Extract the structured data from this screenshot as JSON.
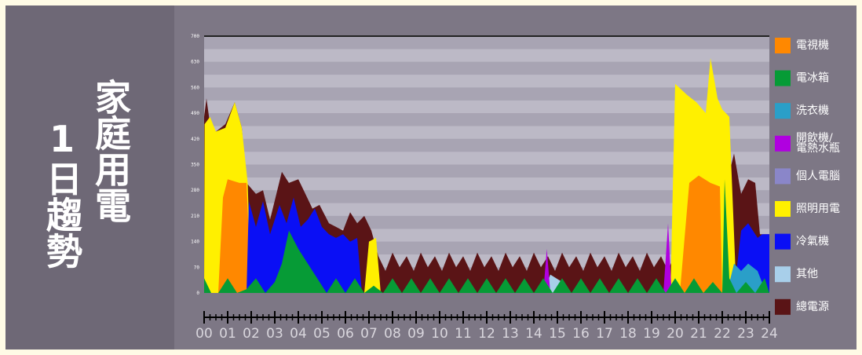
{
  "title_line1": "家庭用電",
  "title_line2": "1日趨勢",
  "chart_data": {
    "type": "area",
    "xlabel": "",
    "ylabel": "",
    "x_ticks": [
      "00",
      "01",
      "02",
      "03",
      "04",
      "05",
      "06",
      "07",
      "08",
      "09",
      "10",
      "11",
      "12",
      "13",
      "14",
      "15",
      "16",
      "17",
      "18",
      "19",
      "20",
      "21",
      "22",
      "23",
      "24"
    ],
    "y_ticks": [
      "0",
      "70",
      "140",
      "210",
      "280",
      "350",
      "420",
      "490",
      "560",
      "630",
      "700"
    ],
    "ylim": [
      0,
      700
    ],
    "xlim": [
      0,
      24
    ],
    "grid": true,
    "legend_position": "right",
    "series": [
      {
        "name": "總電源",
        "color": "#5a1416",
        "points": [
          [
            0,
            480
          ],
          [
            0.1,
            530
          ],
          [
            0.25,
            460
          ],
          [
            0.5,
            440
          ],
          [
            0.9,
            460
          ],
          [
            1.3,
            520
          ],
          [
            1.6,
            450
          ],
          [
            1.8,
            300
          ],
          [
            2.2,
            270
          ],
          [
            2.5,
            280
          ],
          [
            2.8,
            200
          ],
          [
            3.3,
            330
          ],
          [
            3.6,
            300
          ],
          [
            4,
            310
          ],
          [
            4.3,
            270
          ],
          [
            4.6,
            230
          ],
          [
            4.9,
            240
          ],
          [
            5.3,
            190
          ],
          [
            5.6,
            180
          ],
          [
            5.9,
            170
          ],
          [
            6.2,
            220
          ],
          [
            6.5,
            190
          ],
          [
            6.8,
            210
          ],
          [
            7.1,
            170
          ],
          [
            7.4,
            100
          ],
          [
            7.7,
            60
          ],
          [
            8,
            110
          ],
          [
            8.3,
            70
          ],
          [
            8.6,
            100
          ],
          [
            8.9,
            60
          ],
          [
            9.2,
            110
          ],
          [
            9.5,
            70
          ],
          [
            9.8,
            100
          ],
          [
            10.1,
            60
          ],
          [
            10.4,
            110
          ],
          [
            10.7,
            70
          ],
          [
            11,
            100
          ],
          [
            11.3,
            60
          ],
          [
            11.6,
            110
          ],
          [
            11.9,
            70
          ],
          [
            12.2,
            100
          ],
          [
            12.5,
            60
          ],
          [
            12.8,
            110
          ],
          [
            13.1,
            70
          ],
          [
            13.4,
            100
          ],
          [
            13.7,
            60
          ],
          [
            14,
            110
          ],
          [
            14.3,
            70
          ],
          [
            14.6,
            100
          ],
          [
            14.9,
            60
          ],
          [
            15.2,
            110
          ],
          [
            15.5,
            70
          ],
          [
            15.8,
            100
          ],
          [
            16.1,
            60
          ],
          [
            16.4,
            110
          ],
          [
            16.7,
            70
          ],
          [
            17,
            100
          ],
          [
            17.3,
            60
          ],
          [
            17.6,
            110
          ],
          [
            17.9,
            70
          ],
          [
            18.2,
            100
          ],
          [
            18.5,
            60
          ],
          [
            18.8,
            110
          ],
          [
            19.1,
            70
          ],
          [
            19.4,
            100
          ],
          [
            19.7,
            60
          ],
          [
            20,
            110
          ],
          [
            20.3,
            300
          ],
          [
            20.6,
            380
          ],
          [
            21,
            320
          ],
          [
            21.4,
            300
          ],
          [
            21.8,
            310
          ],
          [
            22.2,
            300
          ],
          [
            22.5,
            380
          ],
          [
            22.8,
            270
          ],
          [
            23.1,
            310
          ],
          [
            23.4,
            300
          ],
          [
            23.6,
            160
          ],
          [
            24,
            160
          ]
        ]
      },
      {
        "name": "照明用電",
        "color": "#fff000",
        "points": [
          [
            0,
            0
          ],
          [
            0.02,
            460
          ],
          [
            0.25,
            480
          ],
          [
            0.5,
            440
          ],
          [
            0.9,
            450
          ],
          [
            1.3,
            520
          ],
          [
            1.6,
            450
          ],
          [
            1.85,
            300
          ],
          [
            2,
            0
          ],
          [
            6.8,
            0
          ],
          [
            7,
            140
          ],
          [
            7.3,
            150
          ],
          [
            7.5,
            0
          ],
          [
            19.8,
            0
          ],
          [
            20,
            570
          ],
          [
            20.5,
            540
          ],
          [
            20.9,
            520
          ],
          [
            21.3,
            490
          ],
          [
            21.5,
            640
          ],
          [
            21.8,
            530
          ],
          [
            22,
            500
          ],
          [
            22.3,
            480
          ],
          [
            22.6,
            0
          ],
          [
            24,
            0
          ]
        ]
      },
      {
        "name": "電視機",
        "color": "#ff8800",
        "points": [
          [
            0,
            0
          ],
          [
            0.6,
            0
          ],
          [
            0.8,
            260
          ],
          [
            1,
            310
          ],
          [
            1.5,
            300
          ],
          [
            1.8,
            300
          ],
          [
            2,
            0
          ],
          [
            19.9,
            0
          ],
          [
            20.2,
            0
          ],
          [
            20.6,
            300
          ],
          [
            21,
            320
          ],
          [
            21.5,
            300
          ],
          [
            21.9,
            290
          ],
          [
            22,
            0
          ],
          [
            24,
            0
          ]
        ]
      },
      {
        "name": "冷氣機",
        "color": "#0a0ff5",
        "points": [
          [
            0,
            0
          ],
          [
            1.8,
            0
          ],
          [
            1.9,
            250
          ],
          [
            2.2,
            180
          ],
          [
            2.5,
            250
          ],
          [
            2.8,
            160
          ],
          [
            3.2,
            240
          ],
          [
            3.5,
            190
          ],
          [
            3.8,
            260
          ],
          [
            4.1,
            180
          ],
          [
            4.4,
            200
          ],
          [
            4.7,
            230
          ],
          [
            5,
            180
          ],
          [
            5.3,
            160
          ],
          [
            5.6,
            150
          ],
          [
            5.9,
            160
          ],
          [
            6.2,
            140
          ],
          [
            6.5,
            150
          ],
          [
            6.7,
            0
          ],
          [
            22.5,
            0
          ],
          [
            22.8,
            170
          ],
          [
            23.1,
            190
          ],
          [
            23.5,
            150
          ],
          [
            23.7,
            160
          ],
          [
            24,
            160
          ]
        ]
      },
      {
        "name": "洗衣機",
        "color": "#2a9fc8",
        "points": [
          [
            0,
            0
          ],
          [
            22.2,
            0
          ],
          [
            22.5,
            80
          ],
          [
            22.8,
            60
          ],
          [
            23.1,
            80
          ],
          [
            23.5,
            60
          ],
          [
            23.8,
            10
          ],
          [
            24,
            0
          ]
        ]
      },
      {
        "name": "其他",
        "color": "#a8cfea",
        "points": [
          [
            0,
            0
          ],
          [
            14.4,
            0
          ],
          [
            14.7,
            50
          ],
          [
            15.2,
            30
          ],
          [
            15.5,
            0
          ],
          [
            24,
            0
          ]
        ]
      },
      {
        "name": "開飲機/電熱水瓶",
        "color": "#b000e0",
        "points": [
          [
            0,
            0
          ],
          [
            14.4,
            0
          ],
          [
            14.55,
            120
          ],
          [
            14.7,
            0
          ],
          [
            19.5,
            0
          ],
          [
            19.7,
            190
          ],
          [
            19.85,
            0
          ],
          [
            24,
            0
          ]
        ]
      },
      {
        "name": "電冰箱",
        "color": "#069b36",
        "points": [
          [
            0,
            40
          ],
          [
            0.3,
            0
          ],
          [
            0.6,
            0
          ],
          [
            1,
            40
          ],
          [
            1.4,
            0
          ],
          [
            1.8,
            10
          ],
          [
            2.2,
            40
          ],
          [
            2.6,
            0
          ],
          [
            3,
            30
          ],
          [
            3.3,
            80
          ],
          [
            3.6,
            170
          ],
          [
            4,
            120
          ],
          [
            4.4,
            80
          ],
          [
            4.8,
            40
          ],
          [
            5.2,
            0
          ],
          [
            5.6,
            40
          ],
          [
            6,
            0
          ],
          [
            6.4,
            40
          ],
          [
            6.8,
            0
          ],
          [
            7.2,
            20
          ],
          [
            7.6,
            0
          ],
          [
            8,
            40
          ],
          [
            8.4,
            0
          ],
          [
            8.8,
            40
          ],
          [
            9.2,
            0
          ],
          [
            9.6,
            40
          ],
          [
            10,
            0
          ],
          [
            10.4,
            40
          ],
          [
            10.8,
            0
          ],
          [
            11.2,
            40
          ],
          [
            11.6,
            0
          ],
          [
            12,
            40
          ],
          [
            12.4,
            0
          ],
          [
            12.8,
            40
          ],
          [
            13.2,
            0
          ],
          [
            13.6,
            40
          ],
          [
            14,
            0
          ],
          [
            14.4,
            40
          ],
          [
            14.8,
            0
          ],
          [
            15.2,
            40
          ],
          [
            15.6,
            0
          ],
          [
            16,
            40
          ],
          [
            16.4,
            0
          ],
          [
            16.8,
            40
          ],
          [
            17.2,
            0
          ],
          [
            17.6,
            40
          ],
          [
            18,
            0
          ],
          [
            18.4,
            40
          ],
          [
            18.8,
            0
          ],
          [
            19.2,
            40
          ],
          [
            19.6,
            0
          ],
          [
            20,
            40
          ],
          [
            20.4,
            0
          ],
          [
            20.8,
            40
          ],
          [
            21.2,
            0
          ],
          [
            21.6,
            30
          ],
          [
            22,
            0
          ],
          [
            22.1,
            310
          ],
          [
            22.3,
            40
          ],
          [
            22.6,
            0
          ],
          [
            23,
            30
          ],
          [
            23.4,
            0
          ],
          [
            23.8,
            40
          ],
          [
            24,
            0
          ]
        ]
      }
    ],
    "legend": [
      {
        "label": "電視機",
        "color": "#ff8800"
      },
      {
        "label": "電冰箱",
        "color": "#069b36"
      },
      {
        "label": "洗衣機",
        "color": "#2a9fc8"
      },
      {
        "label_lines": [
          "開飲機/",
          "電熱水瓶"
        ],
        "color": "#b000e0"
      },
      {
        "label": "個人電腦",
        "color": "#8a86c9"
      },
      {
        "label": "照明用電",
        "color": "#fff000"
      },
      {
        "label": "冷氣機",
        "color": "#0a0ff5"
      },
      {
        "label": "其他",
        "color": "#a8cfea"
      },
      {
        "label": "總電源",
        "color": "#5a1416"
      }
    ]
  }
}
